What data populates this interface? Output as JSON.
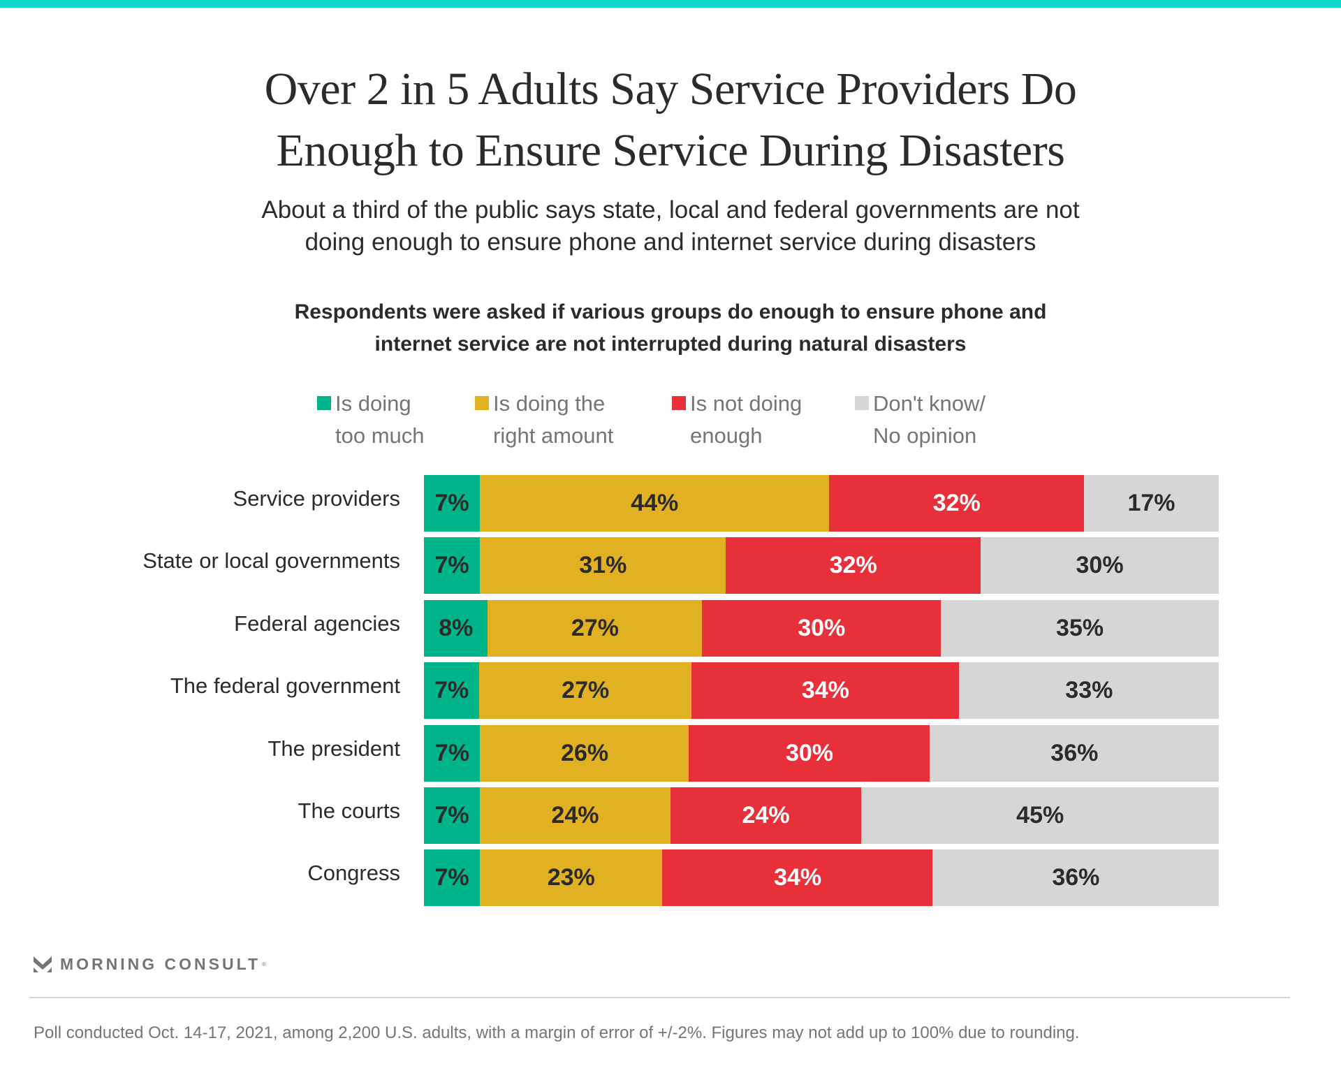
{
  "header": {
    "accent_color": "#0fd6cb",
    "title_lines": [
      "Over 2 in 5 Adults Say Service Providers Do",
      "Enough to Ensure Service During Disasters"
    ],
    "subtitle_lines": [
      "About a third of the public says state, local and federal governments are not",
      "doing enough to ensure phone and internet service during disasters"
    ],
    "question_lines": [
      "Respondents were asked if various groups do enough to ensure phone and",
      "internet service are not interrupted during natural disasters"
    ]
  },
  "chart_data": {
    "type": "bar",
    "orientation": "horizontal",
    "stacked": true,
    "title": "Over 2 in 5 Adults Say Service Providers Do Enough to Ensure Service During Disasters",
    "subtitle": "About a third of the public says state, local and federal governments are not doing enough to ensure phone and internet service during disasters",
    "xlabel": "",
    "ylabel": "",
    "unit": "%",
    "xlim": [
      0,
      100
    ],
    "grid": false,
    "legend_position": "top",
    "categories": [
      "Service providers",
      "State or local governments",
      "Federal agencies",
      "The federal government",
      "The president",
      "The courts",
      "Congress"
    ],
    "series": [
      {
        "name": "Is doing too much",
        "legend_lines": [
          "Is doing",
          "too much"
        ],
        "color": "#00b48a",
        "label_color": "#2b2b2b",
        "values": [
          7,
          7,
          8,
          7,
          7,
          7,
          7
        ]
      },
      {
        "name": "Is doing the right amount",
        "legend_lines": [
          "Is doing the",
          "right amount"
        ],
        "color": "#e1b023",
        "label_color": "#2b2b2b",
        "values": [
          44,
          31,
          27,
          27,
          26,
          24,
          23
        ]
      },
      {
        "name": "Is not doing enough",
        "legend_lines": [
          "Is not doing",
          "enough"
        ],
        "color": "#e8303a",
        "label_color": "#ffffff",
        "values": [
          32,
          32,
          30,
          34,
          30,
          24,
          34
        ]
      },
      {
        "name": "Don't know/No opinion",
        "legend_lines": [
          "Don't know/",
          "No opinion"
        ],
        "color": "#d6d6d6",
        "label_color": "#2b2b2b",
        "values": [
          17,
          30,
          35,
          33,
          36,
          45,
          36
        ]
      }
    ]
  },
  "footer": {
    "brand": "MORNING CONSULT",
    "brand_mark": "®",
    "note": "Poll conducted Oct. 14-17, 2021, among 2,200 U.S. adults, with a margin of error of +/-2%. Figures may not add up to 100% due to rounding."
  }
}
